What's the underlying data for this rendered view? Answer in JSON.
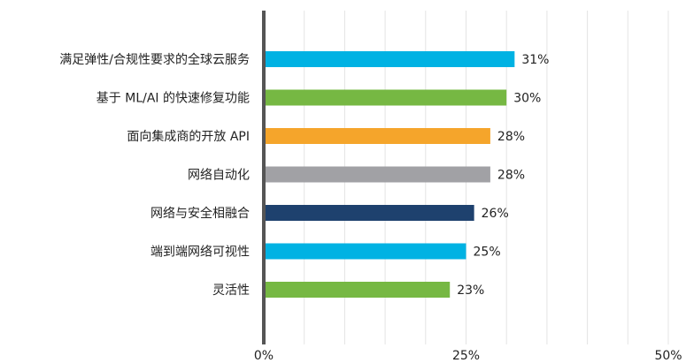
{
  "chart_data": {
    "type": "barh",
    "categories": [
      "满足弹性/合规性要求的全球云服务",
      "基于 ML/AI 的快速修复功能",
      "面向集成商的开放 API",
      "网络自动化",
      "网络与安全相融合",
      "端到端网络可视性",
      "灵活性"
    ],
    "values": [
      31,
      30,
      28,
      28,
      26,
      25,
      23
    ],
    "value_labels": [
      "31%",
      "30%",
      "28%",
      "28%",
      "26%",
      "25%",
      "23%"
    ],
    "colors": [
      "#00b2e3",
      "#76b843",
      "#f5a52b",
      "#a1a1a5",
      "#1e416e",
      "#00b2e3",
      "#76b843"
    ],
    "xlim": [
      0,
      50
    ],
    "xticks": [
      {
        "value": 0,
        "label": "0%"
      },
      {
        "value": 25,
        "label": "25%"
      },
      {
        "value": 50,
        "label": "50%"
      }
    ],
    "grid_ticks": [
      5,
      10,
      15,
      20,
      25,
      30,
      35,
      40,
      45,
      50
    ],
    "grid": true
  }
}
